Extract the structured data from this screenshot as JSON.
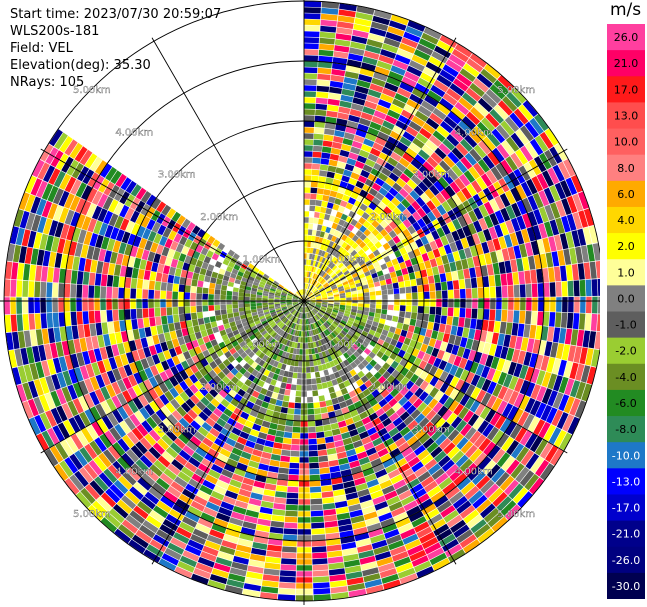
{
  "header": {
    "start_time": "Start time: 2023/07/30 20:59:07",
    "station": "WLS200s-181",
    "field": "Field: VEL",
    "elevation": "Elevation(deg): 35.30",
    "nrays": "NRays: 105"
  },
  "colorbar": {
    "unit_label": "m/s",
    "levels": [
      {
        "label": "26.0",
        "color": "#ff3f9f"
      },
      {
        "label": "21.0",
        "color": "#ff0066"
      },
      {
        "label": "17.0",
        "color": "#ff1a1a"
      },
      {
        "label": "13.0",
        "color": "#ff4d4d"
      },
      {
        "label": "10.0",
        "color": "#ff6060"
      },
      {
        "label": "8.0",
        "color": "#ff8080"
      },
      {
        "label": "6.0",
        "color": "#ffaa00"
      },
      {
        "label": "4.0",
        "color": "#ffd700"
      },
      {
        "label": "2.0",
        "color": "#ffff00"
      },
      {
        "label": "1.0",
        "color": "#ffff99"
      },
      {
        "label": "0.0",
        "color": "#808080"
      },
      {
        "label": "-1.0",
        "color": "#5e5e5e"
      },
      {
        "label": "-2.0",
        "color": "#9acd32"
      },
      {
        "label": "-4.0",
        "color": "#6b8e23"
      },
      {
        "label": "-6.0",
        "color": "#228b22"
      },
      {
        "label": "-8.0",
        "color": "#2e8b57"
      },
      {
        "label": "-10.0",
        "color": "#1e78c8"
      },
      {
        "label": "-13.0",
        "color": "#0000ff"
      },
      {
        "label": "-17.0",
        "color": "#0000cd"
      },
      {
        "label": "-21.0",
        "color": "#00008b"
      },
      {
        "label": "-26.0",
        "color": "#000080"
      },
      {
        "label": "-30.0",
        "color": "#000050"
      }
    ]
  },
  "chart_data": {
    "type": "heatmap",
    "projection": "polar PPI",
    "field": "VEL",
    "unit": "m/s",
    "elevation_deg": 35.3,
    "n_rays": 105,
    "range_rings": [
      {
        "label": "1.00km",
        "km": 1
      },
      {
        "label": "2.00km",
        "km": 2
      },
      {
        "label": "3.00km",
        "km": 3
      },
      {
        "label": "4.00km",
        "km": 4
      },
      {
        "label": "5.00km",
        "km": 5
      }
    ],
    "max_range_km": 5.0,
    "missing_sector_deg": [
      305,
      360
    ],
    "pattern": {
      "near_range_km": 1.0,
      "north_near": "positive 1-6 m/s (yellow/orange)",
      "south_near": "negative -2 to -8 m/s (green)",
      "outer": "noise across full colour scale"
    }
  }
}
